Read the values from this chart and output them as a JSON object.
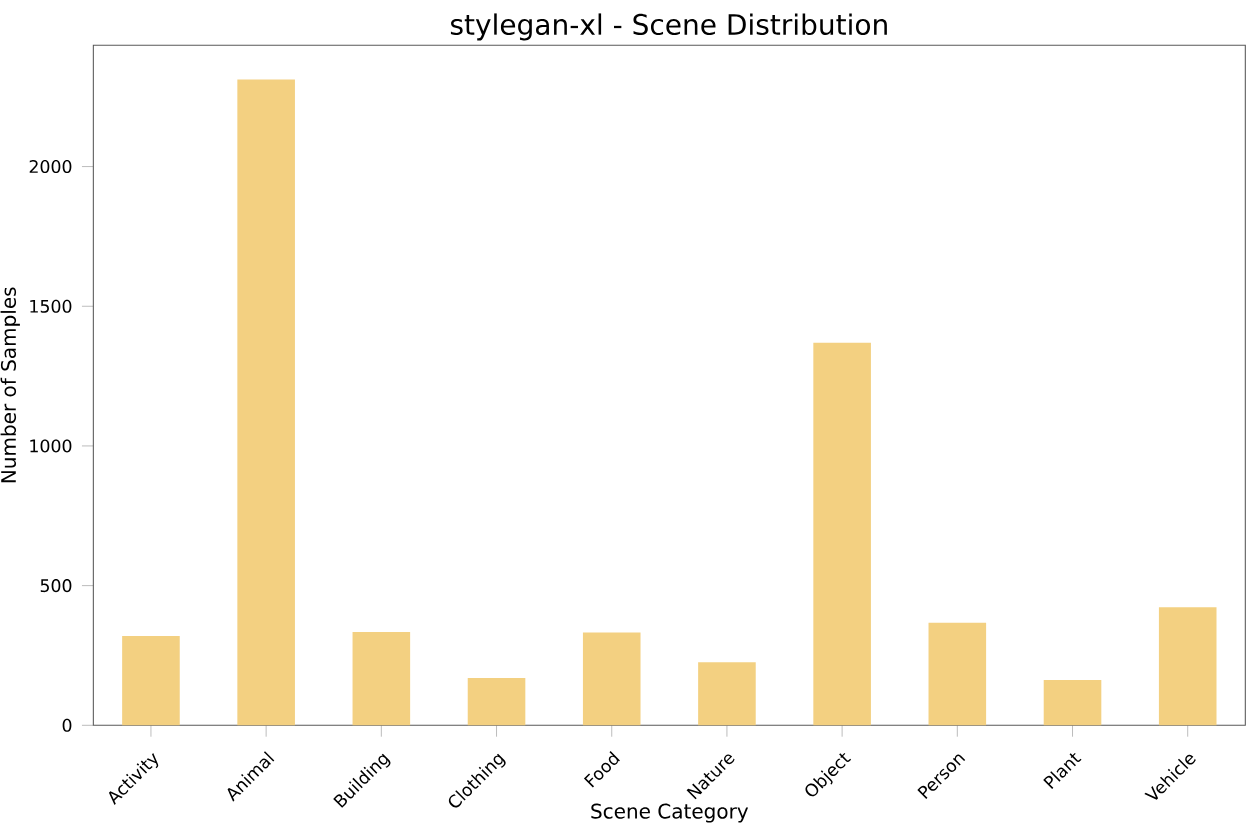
{
  "chart_data": {
    "type": "bar",
    "title": "stylegan-xl - Scene Distribution",
    "xlabel": "Scene Category",
    "ylabel": "Number of Samples",
    "categories": [
      "Activity",
      "Animal",
      "Building",
      "Clothing",
      "Food",
      "Nature",
      "Object",
      "Person",
      "Plant",
      "Vehicle"
    ],
    "values": [
      320,
      2312,
      334,
      169,
      332,
      226,
      1369,
      367,
      162,
      423
    ],
    "color": "#f3d081",
    "ylim": [
      0,
      2434
    ],
    "yticks": [
      0,
      500,
      1000,
      1500,
      2000
    ],
    "grid": false
  }
}
